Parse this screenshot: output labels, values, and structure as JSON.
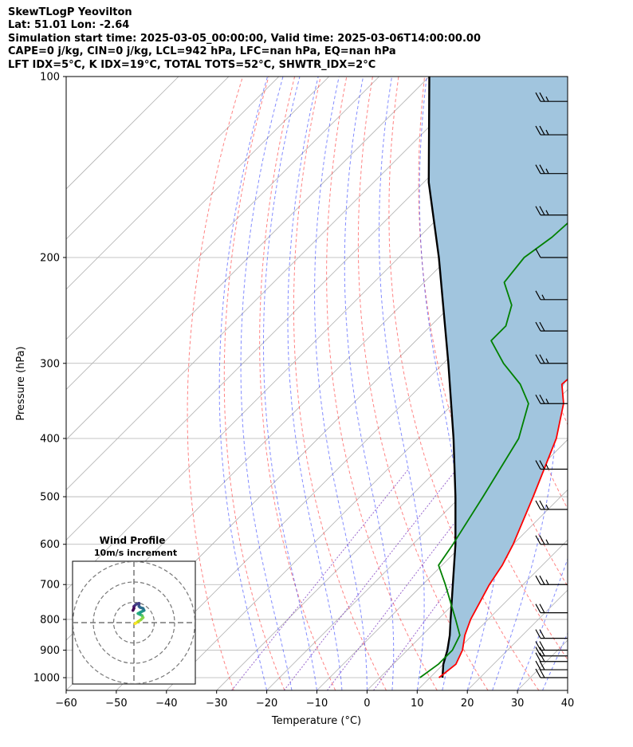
{
  "header": {
    "lines": [
      "SkewTLogP Yeovilton",
      "Lat: 51.01   Lon: -2.64",
      "Simulation start time: 2025-03-05_00:00:00, Valid time: 2025-03-06T14:00:00.00",
      "CAPE=0 j/kg, CIN=0 j/kg, LCL=942 hPa, LFC=nan hPa, EQ=nan hPa",
      "LFT IDX=5°C, K IDX=19°C, TOTAL TOTS=52°C, SHWTR_IDX=2°C"
    ]
  },
  "inset": {
    "title": "Wind Profile",
    "subtitle": "10m/s increment",
    "hodograph_uv_ms": [
      [
        0.5,
        -0.5
      ],
      [
        1,
        -0.2
      ],
      [
        2,
        0.5
      ],
      [
        3.5,
        1.5
      ],
      [
        4.5,
        2.5
      ],
      [
        4,
        3.5
      ],
      [
        3,
        4
      ],
      [
        2,
        4.5
      ],
      [
        3,
        5
      ],
      [
        5,
        6
      ],
      [
        4.5,
        7
      ],
      [
        3,
        7.5
      ],
      [
        2.5,
        8
      ],
      [
        2.5,
        9.5
      ],
      [
        1,
        9
      ],
      [
        0,
        8
      ],
      [
        0,
        7
      ],
      [
        -0.5,
        6
      ]
    ]
  },
  "chart_data": {
    "type": "line",
    "title": "SkewTLogP Yeovilton",
    "xlabel": "Temperature (°C)",
    "ylabel": "Pressure (hPa)",
    "xlim": [
      -60,
      40
    ],
    "ylim": [
      1050,
      100
    ],
    "y_scale": "log",
    "skew": "45 degrees",
    "x_ticks": [
      "−60",
      "−50",
      "−40",
      "−30",
      "−20",
      "−10",
      "0",
      "10",
      "20",
      "30",
      "40"
    ],
    "x_tick_values": [
      -60,
      -50,
      -40,
      -30,
      -20,
      -10,
      0,
      10,
      20,
      30,
      40
    ],
    "y_ticks": [
      "1000",
      "900",
      "800",
      "700",
      "600",
      "500",
      "400",
      "300",
      "200",
      "100"
    ],
    "y_tick_values": [
      1000,
      900,
      800,
      700,
      600,
      500,
      400,
      300,
      200,
      100
    ],
    "grid": true,
    "series": [
      {
        "role": "temperature",
        "color": "#ff0000",
        "points": [
          [
            1000,
            11.8
          ],
          [
            950,
            12.5
          ],
          [
            900,
            11
          ],
          [
            850,
            8.5
          ],
          [
            800,
            6.5
          ],
          [
            700,
            3.3
          ],
          [
            650,
            2
          ],
          [
            600,
            0
          ],
          [
            500,
            -5.5
          ],
          [
            400,
            -12.5
          ],
          [
            350,
            -18
          ],
          [
            325,
            -22.2
          ],
          [
            300,
            -21.5
          ],
          [
            275,
            -23
          ],
          [
            250,
            -27
          ],
          [
            225,
            -30.5
          ],
          [
            210,
            -32.5
          ],
          [
            200,
            -34
          ],
          [
            180,
            -38
          ],
          [
            160,
            -42
          ],
          [
            140,
            -46
          ],
          [
            120,
            -51
          ],
          [
            110,
            -53
          ],
          [
            100,
            -54
          ]
        ]
      },
      {
        "role": "dewpoint",
        "color": "#008000",
        "points": [
          [
            1000,
            8
          ],
          [
            950,
            9
          ],
          [
            900,
            9
          ],
          [
            850,
            7.5
          ],
          [
            800,
            3.5
          ],
          [
            700,
            -5.5
          ],
          [
            650,
            -10.7
          ],
          [
            600,
            -12
          ],
          [
            500,
            -15.5
          ],
          [
            400,
            -20
          ],
          [
            350,
            -25
          ],
          [
            325,
            -30.5
          ],
          [
            300,
            -38
          ],
          [
            275,
            -45
          ],
          [
            260,
            -45
          ],
          [
            240,
            -48
          ],
          [
            220,
            -54
          ],
          [
            200,
            -55
          ],
          [
            185,
            -53.5
          ],
          [
            170,
            -53
          ],
          [
            150,
            -56.5
          ],
          [
            120,
            -59
          ],
          [
            100,
            -62
          ]
        ]
      },
      {
        "role": "parcel",
        "color": "#000000",
        "points": [
          [
            1000,
            12.5
          ],
          [
            950,
            10
          ],
          [
            900,
            8
          ],
          [
            850,
            5.5
          ],
          [
            800,
            2.5
          ],
          [
            700,
            -4
          ],
          [
            600,
            -11.5
          ],
          [
            500,
            -21
          ],
          [
            400,
            -33
          ],
          [
            300,
            -49
          ],
          [
            200,
            -72
          ],
          [
            150,
            -89
          ],
          [
            100,
            -110
          ]
        ]
      }
    ],
    "wind_barbs_kt": [
      [
        1000,
        20
      ],
      [
        970,
        20
      ],
      [
        940,
        20
      ],
      [
        920,
        20
      ],
      [
        900,
        20
      ],
      [
        860,
        20
      ],
      [
        780,
        20
      ],
      [
        700,
        25
      ],
      [
        600,
        25
      ],
      [
        525,
        25
      ],
      [
        450,
        25
      ],
      [
        350,
        25
      ],
      [
        300,
        25
      ],
      [
        265,
        20
      ],
      [
        235,
        15
      ],
      [
        200,
        10
      ],
      [
        170,
        25
      ],
      [
        145,
        25
      ],
      [
        125,
        25
      ],
      [
        110,
        25
      ]
    ],
    "colors": {
      "cape_fill": "#a1c5de",
      "dry_adiabat": "#ff4040",
      "moist_adiabat": "#3040ff",
      "mixing_ratio": "#8040c0",
      "grid": "#b0b0b0"
    }
  }
}
